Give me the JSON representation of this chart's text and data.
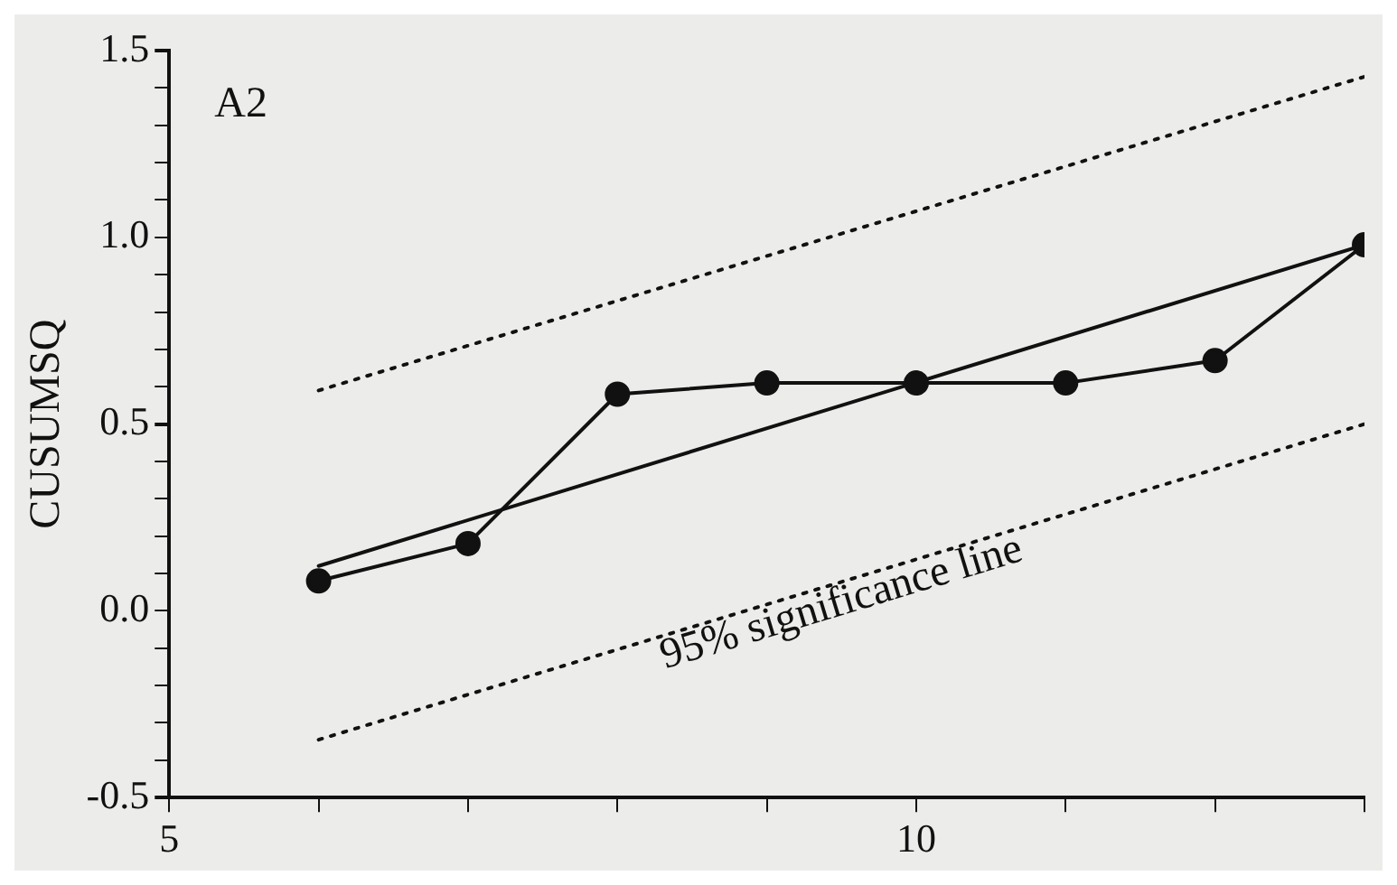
{
  "chart_data": {
    "type": "line",
    "ylabel": "CUSUMSQ",
    "annotations": [
      "95% significance line",
      "A2"
    ],
    "xlim": [
      5,
      13
    ],
    "ylim": [
      -0.5,
      1.5
    ],
    "xticks": [
      5,
      {
        "value": 6,
        "label": null
      },
      {
        "value": 7,
        "label": null
      },
      {
        "value": 8,
        "label": null
      },
      {
        "value": 9,
        "label": null
      },
      10,
      {
        "value": 11,
        "label": null
      },
      {
        "value": 12,
        "label": null
      },
      {
        "value": 13,
        "label": null
      }
    ],
    "yticks": [
      -0.5,
      {
        "value": -0.4,
        "label": null
      },
      {
        "value": -0.3,
        "label": null
      },
      {
        "value": -0.2,
        "label": null
      },
      {
        "value": -0.1,
        "label": null
      },
      {
        "value": 0,
        "label": "0.0"
      },
      {
        "value": 0.1,
        "label": null
      },
      {
        "value": 0.2,
        "label": null
      },
      {
        "value": 0.3,
        "label": null
      },
      {
        "value": 0.4,
        "label": null
      },
      0.5,
      {
        "value": 0.6,
        "label": null
      },
      {
        "value": 0.7,
        "label": null
      },
      {
        "value": 0.8,
        "label": null
      },
      {
        "value": 0.9,
        "label": null
      },
      {
        "value": 1,
        "label": "1.0"
      },
      {
        "value": 1.1,
        "label": null
      },
      {
        "value": 1.2,
        "label": null
      },
      {
        "value": 1.3,
        "label": null
      },
      {
        "value": 1.4,
        "label": null
      },
      1.5
    ],
    "grid": false,
    "legend": false,
    "series": [
      {
        "type": "line",
        "color": "#111111",
        "marker": "circle",
        "line_style": "solid",
        "x": [
          6,
          7,
          8,
          9,
          10,
          11,
          12,
          13
        ],
        "values": [
          0.08,
          0.18,
          0.58,
          0.61,
          0.61,
          0.61,
          0.67,
          0.98
        ]
      },
      {
        "type": "line",
        "color": "#111111",
        "marker": "none",
        "line_style": "solid",
        "x": [
          6,
          13
        ],
        "values": [
          0.12,
          0.98
        ]
      },
      {
        "type": "line",
        "color": "#111111",
        "marker": "none",
        "line_style": "dotted",
        "x": [
          6,
          13
        ],
        "values": [
          0.59,
          1.43
        ]
      },
      {
        "type": "line",
        "color": "#111111",
        "marker": "none",
        "line_style": "dotted",
        "x": [
          6,
          13
        ],
        "values": [
          -0.345,
          0.5
        ]
      }
    ]
  }
}
